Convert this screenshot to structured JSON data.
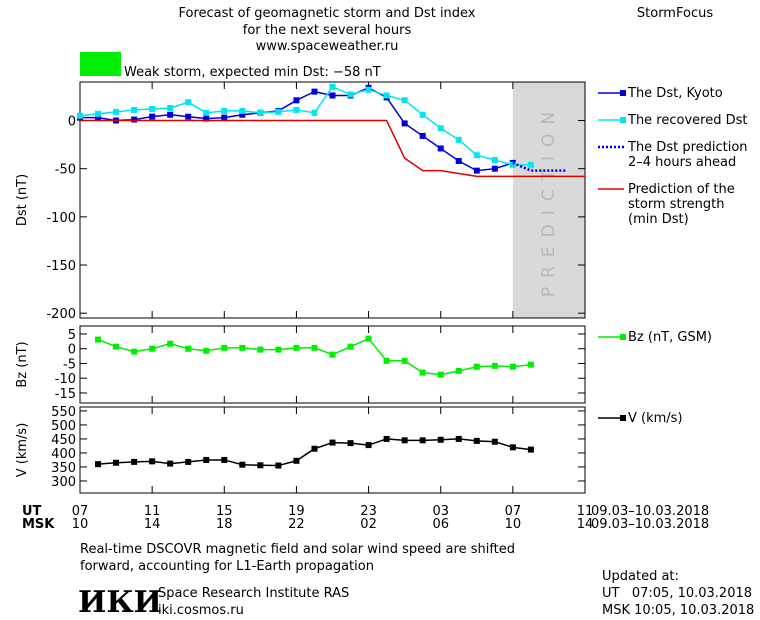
{
  "header": {
    "title": "Forecast of geomagnetic storm and Dst index",
    "subtitle": "for the next several hours",
    "source": "www.spaceweather.ru",
    "brand": "StormFocus",
    "status": "Weak storm, expected min Dst: −58 nT",
    "status_color": "#00ee00"
  },
  "prediction_region": {
    "x": [
      24,
      28
    ],
    "label": "PREDICTION",
    "color": "#d9d9d9"
  },
  "chart_data": [
    {
      "type": "line",
      "ylabel": "Dst (nT)",
      "xlim": [
        0,
        28
      ],
      "ylim": [
        -205,
        40
      ],
      "yticks": [
        0,
        -50,
        -100,
        -150,
        -200
      ],
      "series": [
        {
          "name": "The Dst, Kyoto",
          "color": "#0000dd",
          "marker": "square",
          "dash": "solid",
          "x": [
            0,
            1,
            2,
            3,
            4,
            5,
            6,
            7,
            8,
            9,
            10,
            11,
            12,
            13,
            14,
            15,
            16,
            17,
            18,
            19,
            20,
            21,
            22,
            23,
            24
          ],
          "values": [
            3,
            3,
            0,
            1,
            4,
            6,
            4,
            2,
            3,
            6,
            8,
            10,
            21,
            30,
            26,
            26,
            34,
            24,
            -3,
            -16,
            -29,
            -42,
            -52,
            -50,
            -44
          ]
        },
        {
          "name": "The recovered Dst",
          "color": "#00e5ee",
          "marker": "square",
          "dash": "solid",
          "x": [
            0,
            1,
            2,
            3,
            4,
            5,
            6,
            7,
            8,
            9,
            10,
            11,
            12,
            13,
            14,
            15,
            16,
            17,
            18,
            19,
            20,
            21,
            22,
            23,
            24,
            25
          ],
          "values": [
            5,
            7,
            9,
            11,
            12,
            13,
            19,
            8,
            10,
            10,
            8,
            9,
            11,
            8,
            35,
            27,
            32,
            26,
            21,
            6,
            -8,
            -20,
            -36,
            -41,
            -46,
            -46
          ]
        },
        {
          "name": [
            "The Dst prediction",
            "2–4 hours ahead"
          ],
          "color": "#0000dd",
          "marker": "none",
          "dash": "dotted",
          "x": [
            24,
            25,
            26,
            27
          ],
          "values": [
            -44,
            -52,
            -52,
            -52
          ]
        },
        {
          "name": [
            "Prediction of the",
            "storm strength",
            "(min Dst)"
          ],
          "color": "#dd0000",
          "marker": "none",
          "dash": "solid",
          "x": [
            0,
            17,
            18,
            19,
            20,
            21,
            22,
            28
          ],
          "values": [
            0,
            0,
            -39,
            -52,
            -52,
            -55,
            -58,
            -58
          ]
        }
      ]
    },
    {
      "type": "line",
      "ylabel": "Bz (nT)",
      "xlim": [
        0,
        28
      ],
      "ylim": [
        -18.4,
        7.7
      ],
      "yticks": [
        5,
        0,
        -5,
        -10,
        -15
      ],
      "series": [
        {
          "name": "Bz (nT, GSM)",
          "color": "#00ee00",
          "marker": "square",
          "dash": "solid",
          "x": [
            1,
            2,
            3,
            4,
            5,
            6,
            7,
            8,
            9,
            10,
            11,
            12,
            13,
            14,
            15,
            16,
            17,
            18,
            19,
            20,
            21,
            22,
            23,
            24,
            25
          ],
          "values": [
            3.1,
            0.7,
            -1,
            0,
            1.7,
            0,
            -0.7,
            0.3,
            0.3,
            -0.3,
            -0.3,
            0.3,
            0.3,
            -2,
            0.7,
            3.4,
            -4.1,
            -4.1,
            -8.1,
            -8.8,
            -7.5,
            -6.1,
            -5.8,
            -6.1,
            -5.4
          ]
        }
      ]
    },
    {
      "type": "line",
      "ylabel": "V (km/s)",
      "xlim": [
        0,
        28
      ],
      "ylim": [
        257,
        564
      ],
      "yticks": [
        550,
        500,
        450,
        400,
        350,
        300
      ],
      "xlabel": "UT",
      "x2label": "MSK",
      "date_range": "09.03–10.03.2018",
      "xticks": [
        {
          "value": 0,
          "label": "07"
        },
        {
          "value": 4,
          "label": "11"
        },
        {
          "value": 8,
          "label": "15"
        },
        {
          "value": 12,
          "label": "19"
        },
        {
          "value": 16,
          "label": "23"
        },
        {
          "value": 20,
          "label": "03"
        },
        {
          "value": 24,
          "label": "07"
        },
        {
          "value": 28,
          "label": "11"
        }
      ],
      "x2ticks": [
        {
          "value": 0,
          "label": "10"
        },
        {
          "value": 4,
          "label": "14"
        },
        {
          "value": 8,
          "label": "18"
        },
        {
          "value": 12,
          "label": "22"
        },
        {
          "value": 16,
          "label": "02"
        },
        {
          "value": 20,
          "label": "06"
        },
        {
          "value": 24,
          "label": "10"
        },
        {
          "value": 28,
          "label": "14"
        }
      ],
      "series": [
        {
          "name": "V (km/s)",
          "color": "#000000",
          "marker": "square",
          "dash": "solid",
          "x": [
            1,
            2,
            3,
            4,
            5,
            6,
            7,
            8,
            9,
            10,
            11,
            12,
            13,
            14,
            15,
            16,
            17,
            18,
            19,
            20,
            21,
            22,
            23,
            24,
            25
          ],
          "values": [
            360,
            365,
            368,
            370,
            362,
            368,
            375,
            375,
            358,
            356,
            355,
            372,
            415,
            437,
            435,
            428,
            450,
            445,
            445,
            447,
            450,
            443,
            440,
            420,
            412
          ]
        }
      ]
    }
  ],
  "footer": {
    "note": [
      "Real-time DSCOVR magnetic field and solar wind speed are shifted",
      "forward, accounting for L1-Earth propagation"
    ],
    "logo": "ИКИ",
    "institute": "Space Research Institute RAS",
    "site": "iki.cosmos.ru",
    "updated": "Updated at:",
    "updated_ut": "UT   07:05, 10.03.2018",
    "updated_msk": "MSK 10:05, 10.03.2018"
  }
}
